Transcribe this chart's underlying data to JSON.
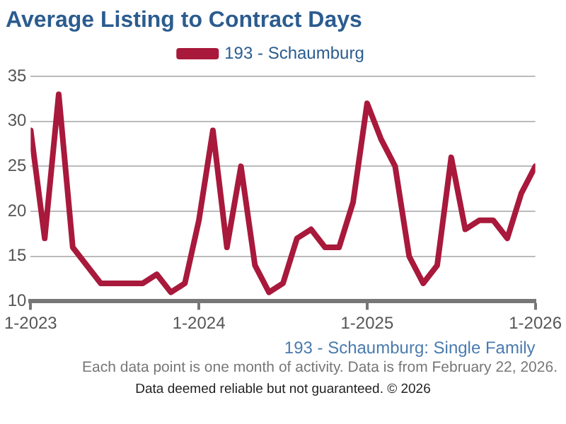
{
  "chart_data": {
    "type": "line",
    "title": "Average Listing to Contract Days",
    "xlabel": "193 - Schaumburg: Single Family",
    "x": [
      "2023-01",
      "2023-02",
      "2023-03",
      "2023-04",
      "2023-05",
      "2023-06",
      "2023-07",
      "2023-08",
      "2023-09",
      "2023-10",
      "2023-11",
      "2023-12",
      "2024-01",
      "2024-02",
      "2024-03",
      "2024-04",
      "2024-05",
      "2024-06",
      "2024-07",
      "2024-08",
      "2024-09",
      "2024-10",
      "2024-11",
      "2024-12",
      "2025-01",
      "2025-02",
      "2025-03",
      "2025-04",
      "2025-05",
      "2025-06",
      "2025-07",
      "2025-08",
      "2025-09",
      "2025-10",
      "2025-11",
      "2025-12",
      "2026-01"
    ],
    "series": [
      {
        "name": "193 - Schaumburg",
        "color": "#a8193b",
        "values": [
          29,
          17,
          33,
          16,
          14,
          12,
          12,
          12,
          12,
          13,
          11,
          12,
          19,
          29,
          16,
          25,
          14,
          11,
          12,
          17,
          18,
          16,
          16,
          21,
          32,
          28,
          25,
          15,
          12,
          14,
          26,
          18,
          19,
          19,
          17,
          22,
          25
        ]
      }
    ],
    "xlim": [
      "2023-01",
      "2026-01"
    ],
    "xticks": [
      {
        "value": "2023-01",
        "label": "1-2023"
      },
      {
        "value": "2024-01",
        "label": "1-2024"
      },
      {
        "value": "2025-01",
        "label": "1-2025"
      },
      {
        "value": "2026-01",
        "label": "1-2026"
      }
    ],
    "ylim": [
      10,
      35
    ],
    "yticks": [
      10,
      15,
      20,
      25,
      30,
      35
    ],
    "grid": "y",
    "legend": "top",
    "marker": "none",
    "line_style": "solid",
    "annotations": [
      "Each data point is one month of activity. Data is from February 22, 2026.",
      "Data deemed reliable but not guaranteed. © 2026"
    ]
  }
}
